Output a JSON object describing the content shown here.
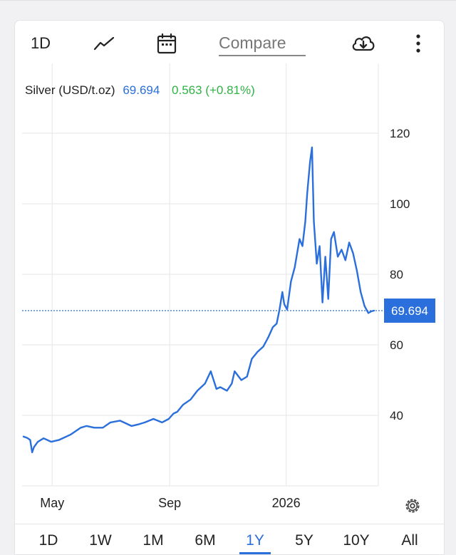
{
  "toolbar": {
    "range_label": "1D",
    "chart_type_icon": "line-chart-icon",
    "calendar_icon": "calendar-icon",
    "compare_placeholder": "Compare",
    "download_icon": "cloud-download-icon",
    "more_icon": "more-vertical-icon"
  },
  "header": {
    "instrument": "Silver (USD/t.oz)",
    "price": "69.694",
    "change": "0.563 (+0.81%)",
    "price_color": "#2a6fdb",
    "change_color": "#2fb344"
  },
  "price_tag": "69.694",
  "settings_icon": "gear-icon",
  "periods": [
    "1D",
    "1W",
    "1M",
    "6M",
    "1Y",
    "5Y",
    "10Y",
    "All"
  ],
  "active_period": "1Y",
  "chart_data": {
    "type": "line",
    "title": "",
    "xlabel": "",
    "ylabel": "",
    "line_color": "#2a6fdb",
    "current_value": 69.694,
    "ylim": [
      20,
      130
    ],
    "y_ticks": [
      40,
      60,
      80,
      100,
      120
    ],
    "x_ticks": [
      "May",
      "Sep",
      "2026"
    ],
    "x_tick_dates": [
      "2025-05-01",
      "2025-09-01",
      "2026-01-01"
    ],
    "grid": true,
    "x": [
      "2025-04-01",
      "2025-04-05",
      "2025-04-08",
      "2025-04-10",
      "2025-04-12",
      "2025-04-16",
      "2025-04-22",
      "2025-04-30",
      "2025-05-08",
      "2025-05-20",
      "2025-05-31",
      "2025-06-06",
      "2025-06-14",
      "2025-06-23",
      "2025-07-01",
      "2025-07-11",
      "2025-07-23",
      "2025-07-31",
      "2025-08-06",
      "2025-08-15",
      "2025-08-24",
      "2025-08-31",
      "2025-09-05",
      "2025-09-09",
      "2025-09-15",
      "2025-09-23",
      "2025-09-30",
      "2025-10-08",
      "2025-10-14",
      "2025-10-17",
      "2025-10-20",
      "2025-10-24",
      "2025-10-31",
      "2025-11-05",
      "2025-11-08",
      "2025-11-15",
      "2025-11-21",
      "2025-11-26",
      "2025-12-02",
      "2025-12-08",
      "2025-12-13",
      "2025-12-18",
      "2025-12-22",
      "2025-12-25",
      "2025-12-28",
      "2025-12-30",
      "2026-01-02",
      "2026-01-06",
      "2026-01-10",
      "2026-01-15",
      "2026-01-18",
      "2026-01-21",
      "2026-01-23",
      "2026-01-26",
      "2026-01-28",
      "2026-01-30",
      "2026-02-02",
      "2026-02-05",
      "2026-02-08",
      "2026-02-11",
      "2026-02-14",
      "2026-02-17",
      "2026-02-20",
      "2026-02-24",
      "2026-02-28",
      "2026-03-04",
      "2026-03-08",
      "2026-03-12",
      "2026-03-16",
      "2026-03-20",
      "2026-03-24",
      "2026-03-28",
      "2026-03-31",
      "2026-04-03"
    ],
    "y": [
      34.0,
      33.6,
      33.0,
      29.5,
      31.0,
      32.5,
      33.5,
      32.5,
      33.0,
      34.5,
      36.5,
      37.0,
      36.5,
      36.5,
      38.0,
      38.5,
      37.0,
      37.5,
      38.0,
      39.0,
      38.0,
      39.0,
      40.5,
      41.0,
      43.0,
      44.5,
      47.0,
      49.0,
      52.5,
      50.0,
      47.5,
      48.0,
      47.0,
      49.0,
      52.5,
      50.0,
      51.0,
      56.0,
      58.0,
      59.5,
      62.0,
      65.0,
      66.0,
      70.0,
      75.0,
      71.5,
      70.0,
      78.0,
      82.0,
      90.0,
      88.0,
      95.0,
      103.0,
      112.0,
      116.0,
      95.0,
      83.0,
      88.0,
      72.0,
      85.0,
      73.0,
      90.0,
      92.0,
      85.0,
      87.0,
      84.0,
      89.0,
      86.0,
      81.0,
      75.0,
      71.0,
      69.0,
      69.5,
      69.694
    ]
  }
}
